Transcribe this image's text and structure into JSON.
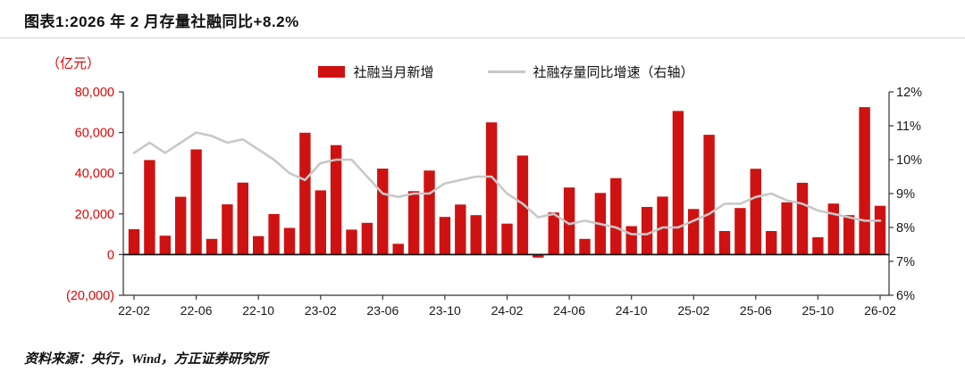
{
  "title": "图表1:2026 年 2 月存量社融同比+8.2%",
  "footer": "资料来源：央行，Wind，方正证券研究所",
  "axis_unit": "（亿元）",
  "legend": {
    "bars": "社融当月新增",
    "line": "社融存量同比增速（右轴）"
  },
  "colors": {
    "bar": "#ce1212",
    "line": "#c8c8c8",
    "left_label": "#e60000",
    "dark_label": "#1a1a1a",
    "axis": "#333333"
  },
  "chart_data": {
    "type": "bar",
    "title": "2026 年 2 月存量社融同比+8.2%",
    "x": [
      "22-02",
      "22-03",
      "22-04",
      "22-05",
      "22-06",
      "22-07",
      "22-08",
      "22-09",
      "22-10",
      "22-11",
      "22-12",
      "23-01",
      "23-02",
      "23-03",
      "23-04",
      "23-05",
      "23-06",
      "23-07",
      "23-08",
      "23-09",
      "23-10",
      "23-11",
      "23-12",
      "24-01",
      "24-02",
      "24-03",
      "24-04",
      "24-05",
      "24-06",
      "24-07",
      "24-08",
      "24-09",
      "24-10",
      "24-11",
      "24-12",
      "25-01",
      "25-02",
      "25-03",
      "25-04",
      "25-05",
      "25-06",
      "25-07",
      "25-08",
      "25-09",
      "25-10",
      "25-11",
      "25-12",
      "26-01",
      "26-02"
    ],
    "series": [
      {
        "name": "社融当月新增",
        "type": "bar",
        "axis": "left",
        "values": [
          12500,
          46500,
          9300,
          28400,
          51700,
          7700,
          24700,
          35400,
          9100,
          19900,
          13100,
          59900,
          31600,
          53800,
          12300,
          15600,
          42300,
          5300,
          31200,
          41300,
          18500,
          24600,
          19400,
          65000,
          15200,
          48700,
          -1500,
          20700,
          33000,
          7700,
          30300,
          37600,
          14000,
          23400,
          28500,
          70600,
          22400,
          58900,
          11600,
          22900,
          42200,
          11600,
          25700,
          35300,
          8500,
          25100,
          19400,
          72500,
          24000
        ]
      },
      {
        "name": "社融存量同比增速（右轴）",
        "type": "line",
        "axis": "right",
        "values": [
          10.2,
          10.5,
          10.2,
          10.5,
          10.8,
          10.7,
          10.5,
          10.6,
          10.3,
          10.0,
          9.6,
          9.4,
          9.9,
          10.0,
          10.0,
          9.5,
          9.0,
          8.9,
          9.0,
          9.0,
          9.3,
          9.4,
          9.5,
          9.5,
          9.0,
          8.7,
          8.3,
          8.4,
          8.1,
          8.2,
          8.1,
          8.0,
          7.8,
          7.8,
          8.0,
          8.0,
          8.2,
          8.4,
          8.7,
          8.7,
          8.9,
          9.0,
          8.8,
          8.7,
          8.5,
          8.4,
          8.3,
          8.2,
          8.2
        ]
      }
    ],
    "left_axis": {
      "min": -20000,
      "max": 80000,
      "ticks": [
        "80,000",
        "60,000",
        "40,000",
        "20,000",
        "0",
        "(20,000)"
      ]
    },
    "right_axis": {
      "min": 6,
      "max": 12,
      "ticks": [
        "12%",
        "11%",
        "10%",
        "9%",
        "8%",
        "7%",
        "6%"
      ]
    },
    "x_tick_labels": [
      "22-02",
      "22-06",
      "22-10",
      "23-02",
      "23-06",
      "23-10",
      "24-02",
      "24-06",
      "24-10",
      "25-02",
      "25-06",
      "25-10",
      "26-02"
    ],
    "grid": false,
    "legend_position": "top"
  }
}
